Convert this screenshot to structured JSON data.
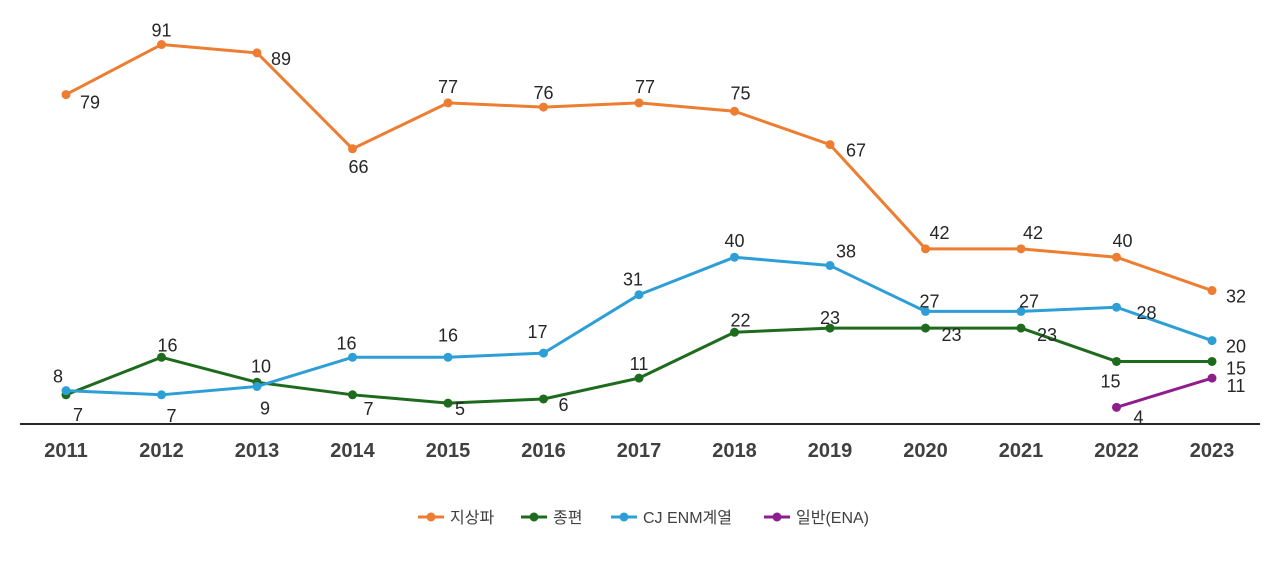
{
  "chart_data": {
    "type": "line",
    "categories": [
      "2011",
      "2012",
      "2013",
      "2014",
      "2015",
      "2016",
      "2017",
      "2018",
      "2019",
      "2020",
      "2021",
      "2022",
      "2023"
    ],
    "series": [
      {
        "name": "지상파",
        "color": "#ED7D31",
        "values": [
          79,
          91,
          89,
          66,
          77,
          76,
          77,
          75,
          67,
          42,
          42,
          40,
          32
        ]
      },
      {
        "name": "종편",
        "color": "#1E6B1E",
        "values": [
          7,
          16,
          10,
          7,
          5,
          6,
          11,
          22,
          23,
          23,
          23,
          15,
          15
        ]
      },
      {
        "name": "CJ ENM계열",
        "color": "#2E9FD6",
        "values": [
          8,
          7,
          9,
          16,
          16,
          17,
          31,
          40,
          38,
          27,
          27,
          28,
          20
        ]
      },
      {
        "name": "일반(ENA)",
        "color": "#8E1E8E",
        "values": [
          null,
          null,
          null,
          null,
          null,
          null,
          null,
          null,
          null,
          null,
          null,
          4,
          11
        ]
      }
    ],
    "ylim": [
      0,
      100
    ],
    "grid": false,
    "legend_position": "bottom",
    "title": "",
    "xlabel": "",
    "ylabel": ""
  }
}
